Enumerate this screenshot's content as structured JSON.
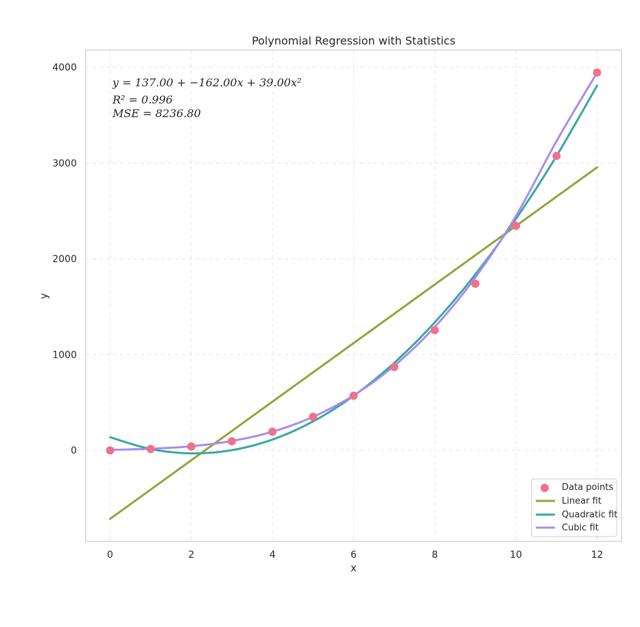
{
  "chart_data": {
    "type": "scatter",
    "title": "Polynomial Regression with Statistics",
    "xlabel": "x",
    "ylabel": "y",
    "xlim": [
      -0.6,
      12.6
    ],
    "ylim": [
      -950,
      4180
    ],
    "xticks": [
      0,
      2,
      4,
      6,
      8,
      10,
      12
    ],
    "yticks": [
      0,
      1000,
      2000,
      3000,
      4000
    ],
    "grid": true,
    "legend_position": "bottom-right",
    "annotations": [
      "y = 137.00 + −162.00x + 39.00x²",
      "R² = 0.996",
      "MSE = 8236.80"
    ],
    "points": {
      "name": "Data points",
      "color": "#f0718a",
      "x": [
        0,
        1,
        2,
        3,
        4,
        5,
        6,
        7,
        8,
        9,
        10,
        11,
        12
      ],
      "y": [
        0,
        15,
        40,
        95,
        195,
        350,
        570,
        870,
        1255,
        1740,
        2345,
        3075,
        3945
      ]
    },
    "series": [
      {
        "name": "Linear fit",
        "color": "#93a43a",
        "type": "line",
        "x": [
          0,
          12
        ],
        "y": [
          -715,
          2955
        ]
      },
      {
        "name": "Quadratic fit",
        "color": "#36a8a0",
        "type": "line",
        "x": [
          0,
          1,
          2,
          3,
          4,
          5,
          6,
          7,
          8,
          9,
          10,
          11,
          12
        ],
        "y": [
          137,
          14,
          -31,
          2,
          113,
          302,
          569,
          914,
          1337,
          1838,
          2417,
          3074,
          3809
        ]
      },
      {
        "name": "Cubic fit",
        "color": "#a98af0",
        "type": "line",
        "x": [
          0,
          1,
          2,
          3,
          4,
          5,
          6,
          7,
          8,
          9,
          10,
          11,
          12
        ],
        "y": [
          5,
          17,
          43,
          98,
          195,
          350,
          574,
          883,
          1289,
          1806,
          2448,
          3229,
          3945
        ]
      }
    ]
  }
}
